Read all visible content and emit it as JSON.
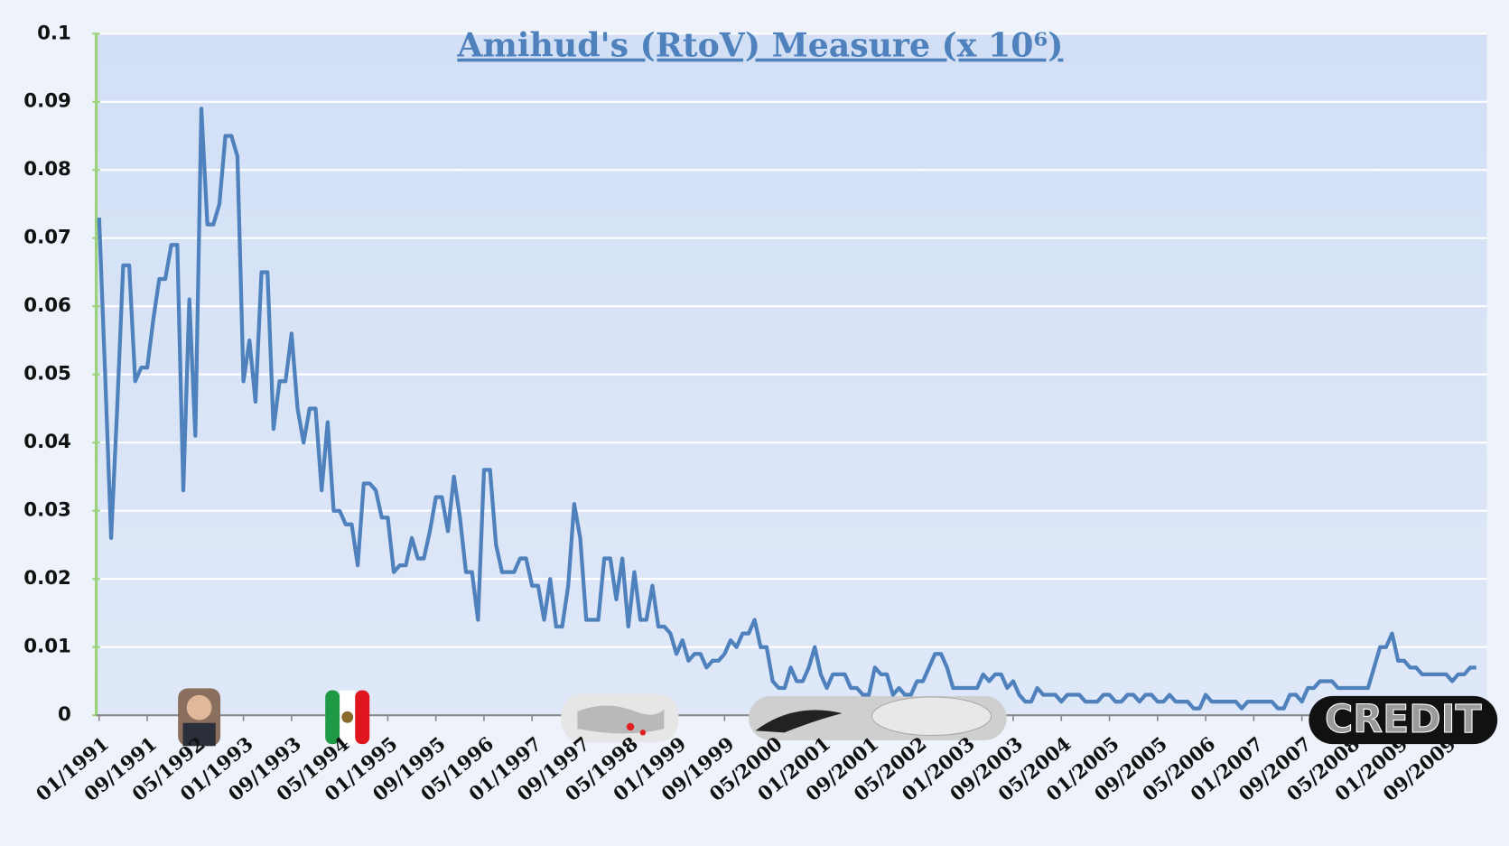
{
  "chart_data": {
    "type": "line",
    "title": "Amihud's (RtoV) Measure (x 10⁶)",
    "annotation": "CREDIT",
    "categories": [
      "01/1991",
      null,
      null,
      null,
      null,
      null,
      null,
      null,
      "09/1991",
      null,
      null,
      null,
      null,
      null,
      null,
      null,
      "05/1992",
      null,
      null,
      null,
      null,
      null,
      null,
      null,
      "01/1993",
      null,
      null,
      null,
      null,
      null,
      null,
      null,
      "09/1993",
      null,
      null,
      null,
      null,
      null,
      null,
      null,
      "05/1994",
      null,
      null,
      null,
      null,
      null,
      null,
      null,
      "01/1995",
      null,
      null,
      null,
      null,
      null,
      null,
      null,
      "09/1995",
      null,
      null,
      null,
      null,
      null,
      null,
      null,
      "05/1996",
      null,
      null,
      null,
      null,
      null,
      null,
      null,
      "01/1997",
      null,
      null,
      null,
      null,
      null,
      null,
      null,
      "09/1997",
      null,
      null,
      null,
      null,
      null,
      null,
      null,
      "05/1998",
      null,
      null,
      null,
      null,
      null,
      null,
      null,
      "01/1999",
      null,
      null,
      null,
      null,
      null,
      null,
      null,
      "09/1999",
      null,
      null,
      null,
      null,
      null,
      null,
      null,
      "05/2000",
      null,
      null,
      null,
      null,
      null,
      null,
      null,
      "01/2001",
      null,
      null,
      null,
      null,
      null,
      null,
      null,
      "09/2001",
      null,
      null,
      null,
      null,
      null,
      null,
      null,
      "05/2002",
      null,
      null,
      null,
      null,
      null,
      null,
      null,
      "01/2003",
      null,
      null,
      null,
      null,
      null,
      null,
      null,
      "09/2003",
      null,
      null,
      null,
      null,
      null,
      null,
      null,
      "05/2004",
      null,
      null,
      null,
      null,
      null,
      null,
      null,
      "01/2005",
      null,
      null,
      null,
      null,
      null,
      null,
      null,
      "09/2005",
      null,
      null,
      null,
      null,
      null,
      null,
      null,
      "05/2006",
      null,
      null,
      null,
      null,
      null,
      null,
      null,
      "01/2007",
      null,
      null,
      null,
      null,
      null,
      null,
      null,
      "09/2007",
      null,
      null,
      null,
      null,
      null,
      null,
      null,
      "05/2008",
      null,
      null,
      null,
      null,
      null,
      null,
      null,
      "01/2009",
      null,
      null,
      null,
      null,
      null,
      null,
      null,
      "09/2009",
      null,
      null,
      null,
      null,
      null
    ],
    "values": [
      0.073,
      0.05,
      0.026,
      0.045,
      0.066,
      0.066,
      0.049,
      0.051,
      0.051,
      0.058,
      0.064,
      0.064,
      0.069,
      0.069,
      0.033,
      0.061,
      0.041,
      0.089,
      0.072,
      0.072,
      0.075,
      0.085,
      0.085,
      0.082,
      0.049,
      0.055,
      0.046,
      0.065,
      0.065,
      0.042,
      0.049,
      0.049,
      0.056,
      0.045,
      0.04,
      0.045,
      0.045,
      0.033,
      0.043,
      0.03,
      0.03,
      0.028,
      0.028,
      0.022,
      0.034,
      0.034,
      0.033,
      0.029,
      0.029,
      0.021,
      0.022,
      0.022,
      0.026,
      0.023,
      0.023,
      0.027,
      0.032,
      0.032,
      0.027,
      0.035,
      0.029,
      0.021,
      0.021,
      0.014,
      0.036,
      0.036,
      0.025,
      0.021,
      0.021,
      0.021,
      0.023,
      0.023,
      0.019,
      0.019,
      0.014,
      0.02,
      0.013,
      0.013,
      0.019,
      0.031,
      0.026,
      0.014,
      0.014,
      0.014,
      0.023,
      0.023,
      0.017,
      0.023,
      0.013,
      0.021,
      0.014,
      0.014,
      0.019,
      0.013,
      0.013,
      0.012,
      0.009,
      0.011,
      0.008,
      0.009,
      0.009,
      0.007,
      0.008,
      0.008,
      0.009,
      0.011,
      0.01,
      0.012,
      0.012,
      0.014,
      0.01,
      0.01,
      0.005,
      0.004,
      0.004,
      0.007,
      0.005,
      0.005,
      0.007,
      0.01,
      0.006,
      0.004,
      0.006,
      0.006,
      0.006,
      0.004,
      0.004,
      0.003,
      0.003,
      0.007,
      0.006,
      0.006,
      0.003,
      0.004,
      0.003,
      0.003,
      0.005,
      0.005,
      0.007,
      0.009,
      0.009,
      0.007,
      0.004,
      0.004,
      0.004,
      0.004,
      0.004,
      0.006,
      0.005,
      0.006,
      0.006,
      0.004,
      0.005,
      0.003,
      0.002,
      0.002,
      0.004,
      0.003,
      0.003,
      0.003,
      0.002,
      0.003,
      0.003,
      0.003,
      0.002,
      0.002,
      0.002,
      0.003,
      0.003,
      0.002,
      0.002,
      0.003,
      0.003,
      0.002,
      0.003,
      0.003,
      0.002,
      0.002,
      0.003,
      0.002,
      0.002,
      0.002,
      0.001,
      0.001,
      0.003,
      0.002,
      0.002,
      0.002,
      0.002,
      0.002,
      0.001,
      0.002,
      0.002,
      0.002,
      0.002,
      0.002,
      0.001,
      0.001,
      0.003,
      0.003,
      0.002,
      0.004,
      0.004,
      0.005,
      0.005,
      0.005,
      0.004,
      0.004,
      0.004,
      0.004,
      0.004,
      0.004,
      0.007,
      0.01,
      0.01,
      0.012,
      0.008,
      0.008,
      0.007,
      0.007,
      0.006,
      0.006,
      0.006,
      0.006,
      0.006,
      0.005,
      0.006,
      0.006,
      0.007,
      0.007
    ],
    "color": "#4f81bd",
    "ylim": [
      0,
      0.1
    ],
    "yticks": [
      0,
      0.01,
      0.02,
      0.03,
      0.04,
      0.05,
      0.06,
      0.07,
      0.08,
      0.09,
      0.1
    ],
    "grid": true
  }
}
